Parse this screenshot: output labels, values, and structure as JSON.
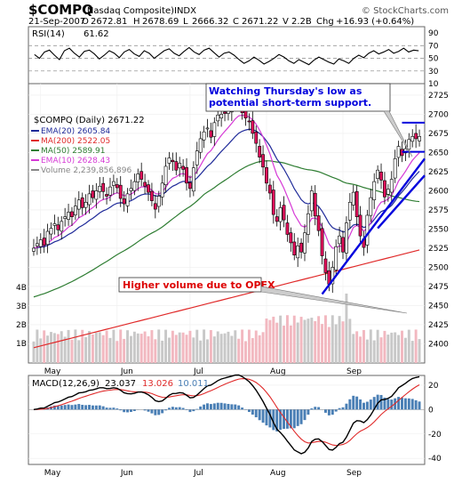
{
  "header": {
    "symbol": "$COMPQ",
    "name": "(Nasdaq Composite)",
    "exchange": "INDX",
    "credit": "© StockCharts.com",
    "date": "21-Sep-2007",
    "quote": {
      "O_label": "O",
      "O": "2672.81",
      "H_label": "H",
      "H": "2678.69",
      "L_label": "L",
      "L": "2666.32",
      "C_label": "C",
      "C": "2671.22",
      "V_label": "V",
      "V": "2.2B",
      "Chg_label": "Chg",
      "Chg": "+16.93 (+0.64%)"
    }
  },
  "annotations": {
    "support_note": [
      "Watching Thursday's low as",
      "potential short-term support."
    ],
    "opex_note": "Higher volume due to OPEX"
  },
  "colors": {
    "ema20": "#1f2a99",
    "ma200": "#e02a2a",
    "ma50": "#2e7d32",
    "ema10": "#d63ad6",
    "volume": "#c8c8c8",
    "macd_hist": "#4a7fb5",
    "annotation_blue": "#0000dd",
    "annotation_red": "#dd0000",
    "up_candle": "#ffffff",
    "down_candle": "#e0105a"
  },
  "chart_data": [
    {
      "type": "line",
      "panel": "rsi",
      "label": "RSI(14)",
      "value": "61.62",
      "ylim": [
        10,
        100
      ],
      "ticks": [
        90,
        70,
        50,
        30,
        10
      ],
      "reference_lines": [
        70,
        50,
        30
      ],
      "values": [
        56,
        50,
        60,
        63,
        55,
        48,
        62,
        66,
        58,
        52,
        61,
        63,
        57,
        49,
        55,
        62,
        58,
        51,
        60,
        64,
        57,
        53,
        62,
        58,
        50,
        56,
        62,
        65,
        58,
        54,
        61,
        67,
        60,
        56,
        63,
        66,
        59,
        52,
        58,
        60,
        55,
        48,
        42,
        46,
        52,
        47,
        41,
        45,
        50,
        56,
        52,
        46,
        42,
        48,
        44,
        40,
        47,
        52,
        48,
        44,
        41,
        49,
        46,
        42,
        50,
        55,
        51,
        58,
        62,
        57,
        60,
        64,
        58,
        61,
        66,
        60,
        63,
        62
      ]
    },
    {
      "type": "candlestick",
      "panel": "price",
      "title": "$COMPQ (Daily) 2671.22",
      "ylim": [
        2375,
        2740
      ],
      "ticks": [
        2725,
        2700,
        2675,
        2650,
        2625,
        2600,
        2575,
        2550,
        2525,
        2500,
        2475,
        2450,
        2425,
        2400
      ],
      "months": [
        "May",
        "Jun",
        "Jul",
        "Aug",
        "Sep"
      ],
      "legend": [
        {
          "label": "EMA(20) 2605.84",
          "color": "#1f2a99"
        },
        {
          "label": "MA(200) 2522.05",
          "color": "#e02a2a"
        },
        {
          "label": "MA(50) 2589.91",
          "color": "#2e7d32"
        },
        {
          "label": "EMA(10) 2628.43",
          "color": "#d63ad6"
        },
        {
          "label": "Volume 2,239,856,896",
          "color": "#888888"
        }
      ],
      "close": [
        2525,
        2531,
        2536,
        2529,
        2547,
        2551,
        2557,
        2549,
        2560,
        2566,
        2572,
        2566,
        2580,
        2588,
        2578,
        2585,
        2596,
        2591,
        2600,
        2606,
        2599,
        2593,
        2605,
        2612,
        2604,
        2590,
        2583,
        2596,
        2603,
        2612,
        2622,
        2615,
        2606,
        2598,
        2587,
        2576,
        2593,
        2610,
        2632,
        2643,
        2638,
        2627,
        2636,
        2628,
        2610,
        2603,
        2630,
        2652,
        2668,
        2677,
        2682,
        2670,
        2689,
        2699,
        2700,
        2701,
        2706,
        2712,
        2720,
        2716,
        2702,
        2695,
        2690,
        2675,
        2662,
        2644,
        2631,
        2610,
        2597,
        2569,
        2560,
        2578,
        2562,
        2543,
        2532,
        2516,
        2528,
        2520,
        2545,
        2570,
        2600,
        2567,
        2548,
        2515,
        2493,
        2478,
        2500,
        2527,
        2541,
        2520,
        2558,
        2585,
        2598,
        2566,
        2541,
        2526,
        2568,
        2591,
        2612,
        2627,
        2614,
        2592,
        2602,
        2615,
        2642,
        2658,
        2646,
        2655,
        2667,
        2671,
        2668,
        2671
      ],
      "volume_scale": [
        "4B",
        "3B",
        "2B",
        "1B"
      ]
    },
    {
      "type": "line",
      "panel": "macd",
      "label": "MACD(12,26,9)",
      "macd_value": "23.037",
      "signal_value": "13.026",
      "hist_value": "10.011",
      "ylim": [
        -45,
        28
      ],
      "ticks": [
        20,
        0,
        -20,
        -40
      ],
      "months": [
        "May",
        "Jun",
        "Jul",
        "Aug",
        "Sep"
      ]
    }
  ]
}
